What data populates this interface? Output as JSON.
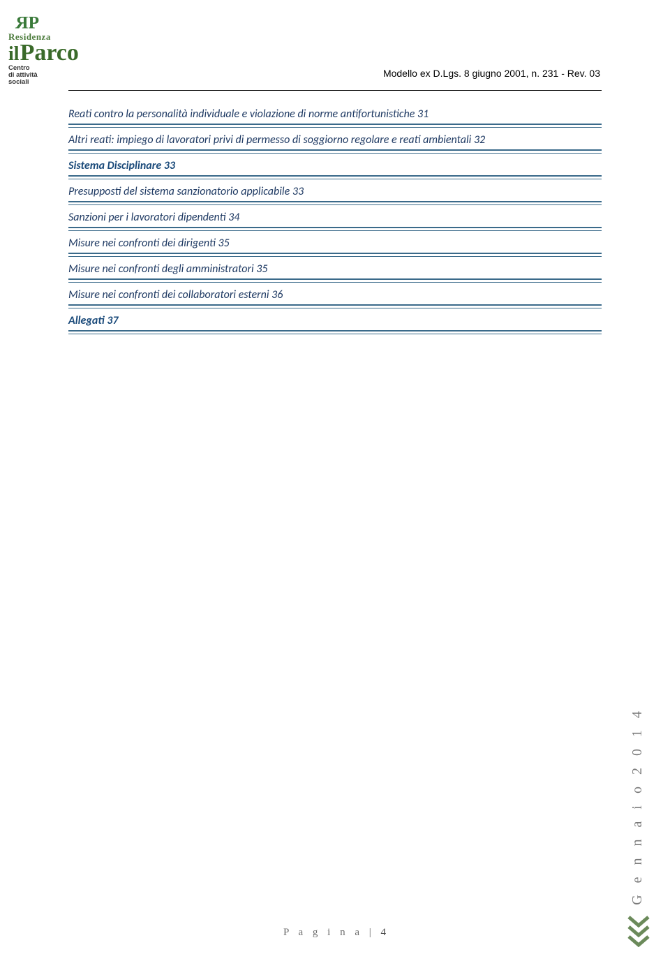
{
  "header": {
    "title": "Modello ex D.Lgs. 8 giugno 2001, n. 231 - Rev. 03",
    "rule_color": "#000000"
  },
  "logo": {
    "brand_top": "Residenza",
    "brand_main_il": "il",
    "brand_main_rest": "Parco",
    "sub1": "Centro",
    "sub2": "di attività",
    "sub3": "sociali",
    "green": "#3a7a3a",
    "dark_green": "#2d5a28"
  },
  "toc": [
    {
      "text": "Reati contro la personalità individuale e violazione di norme antifortunistiche 31",
      "bold": false
    },
    {
      "text": "Altri reati: impiego di lavoratori privi di permesso di soggiorno regolare e reati ambientali 32",
      "bold": false
    },
    {
      "text": "Sistema Disciplinare 33",
      "bold": true
    },
    {
      "text": "Presupposti del sistema sanzionatorio applicabile 33",
      "bold": false
    },
    {
      "text": "Sanzioni per i lavoratori dipendenti 34",
      "bold": false
    },
    {
      "text": "Misure nei confronti dei dirigenti 35",
      "bold": false
    },
    {
      "text": "Misure nei confronti degli amministratori 35",
      "bold": false
    },
    {
      "text": "Misure nei confronti dei collaboratori esterni 36",
      "bold": false
    },
    {
      "text": "Allegati 37",
      "bold": true
    }
  ],
  "style": {
    "toc_text_color": "#1f3a63",
    "toc_bold_color": "#1a4a7a",
    "rule_color": "#3a6a8a",
    "background": "#ffffff"
  },
  "footer": {
    "label": "P a g i n a",
    "sep": " | ",
    "num": "4"
  },
  "side_year": "G e n n a i o  2 0 1 4",
  "chevron_color": "#6b8a5a"
}
